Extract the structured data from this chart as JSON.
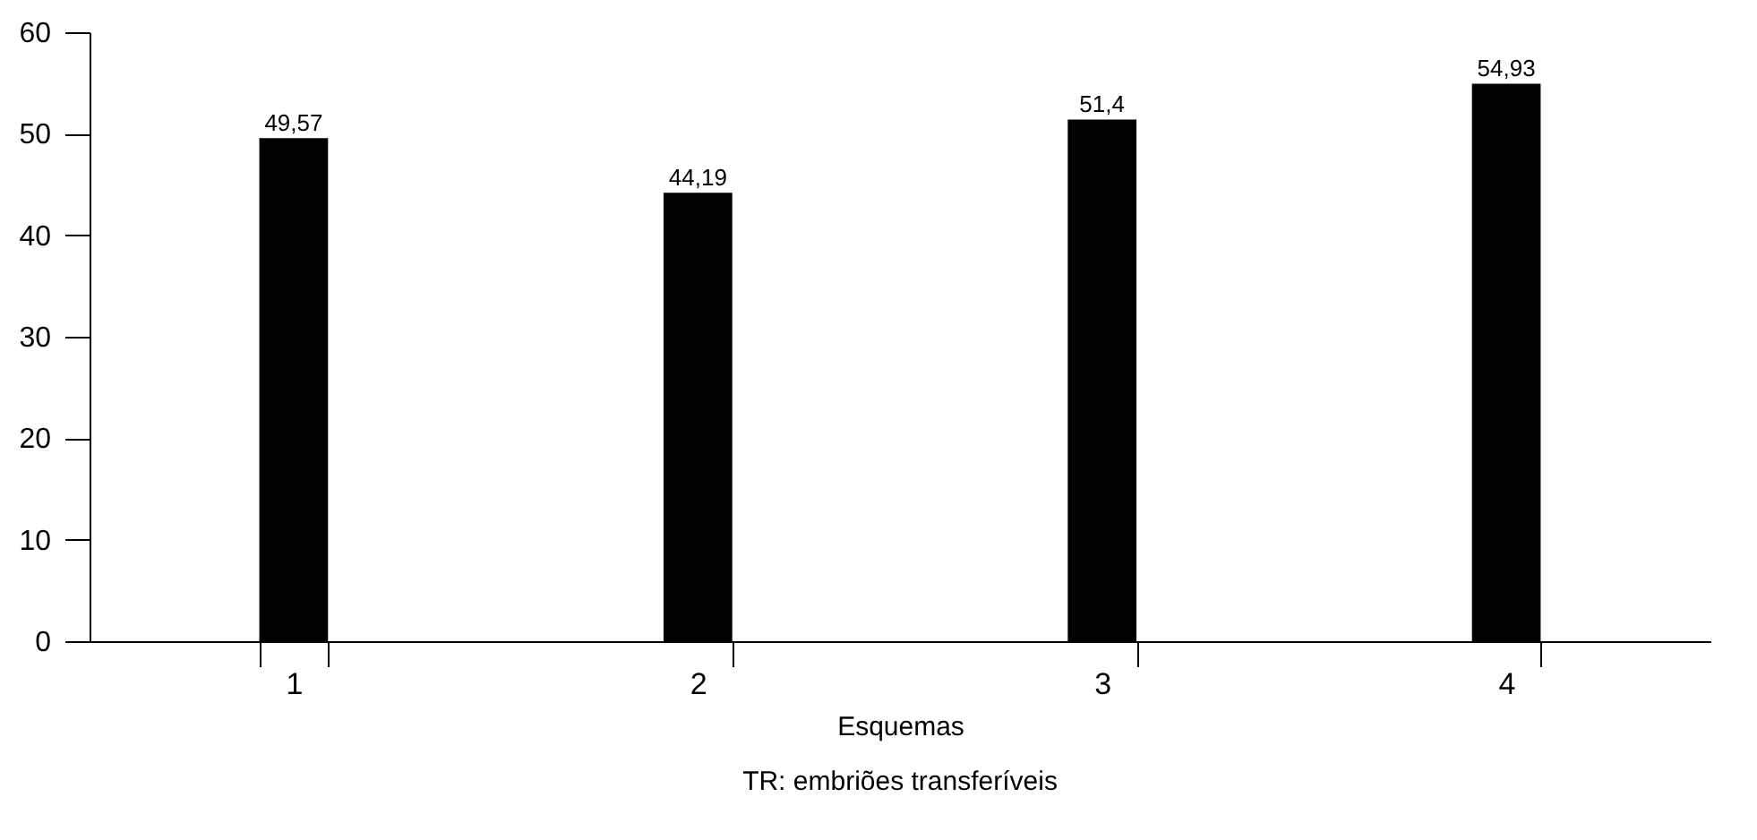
{
  "chart_data": {
    "type": "bar",
    "categories": [
      "1",
      "2",
      "3",
      "4"
    ],
    "values": [
      49.57,
      44.19,
      51.4,
      54.93
    ],
    "value_labels": [
      "49,57",
      "44,19",
      "51,4",
      "54,93"
    ],
    "color": "#000000",
    "ylim": [
      0,
      60
    ],
    "yticks": [
      0,
      10,
      20,
      30,
      40,
      50,
      60
    ],
    "grid": false,
    "xlabel": "Esquemas",
    "annotations": [
      "TR: embriões transferíveis"
    ]
  }
}
